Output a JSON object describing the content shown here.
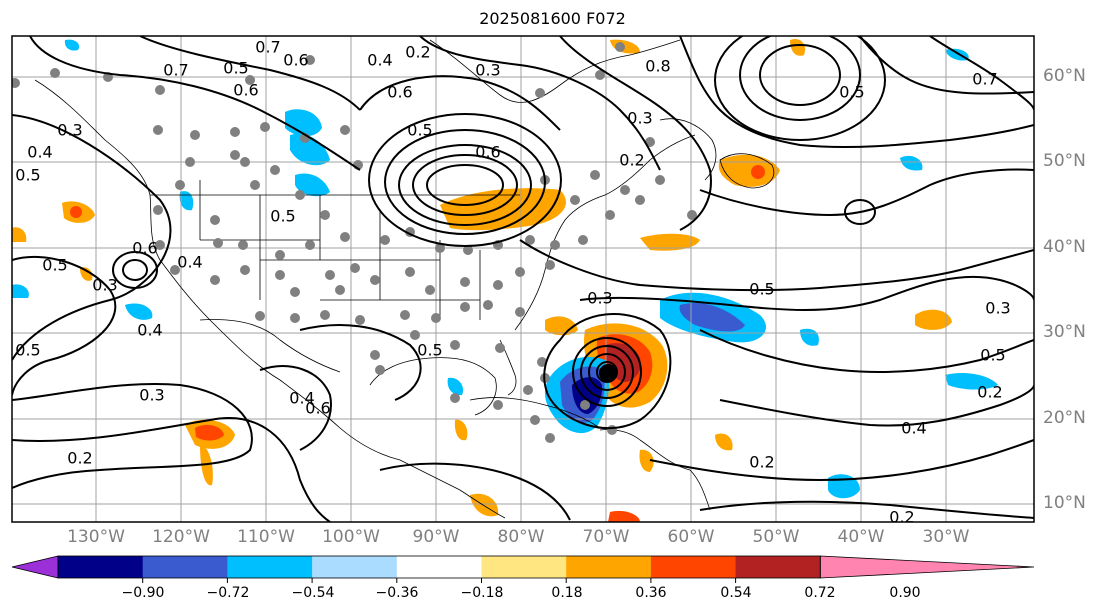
{
  "title": "2025081600 F072",
  "lat_labels": [
    "60°N",
    "50°N",
    "40°N",
    "30°N",
    "20°N",
    "10°N"
  ],
  "lon_labels": [
    "130°W",
    "120°W",
    "110°W",
    "100°W",
    "90°W",
    "80°W",
    "70°W",
    "60°W",
    "50°W",
    "40°W",
    "30°W"
  ],
  "colorbar": {
    "ticks": [
      "−0.90",
      "−0.72",
      "−0.54",
      "−0.36",
      "−0.18",
      "0.18",
      "0.36",
      "0.54",
      "0.72",
      "0.90"
    ],
    "colors": [
      "#9b30d8",
      "#000088",
      "#3a5bd0",
      "#00bfff",
      "#aadcff",
      "#ffffff",
      "#ffe680",
      "#ffa500",
      "#ff4500",
      "#b22222",
      "#ff85b0"
    ]
  },
  "contour_labels": [
    "0.7",
    "0.6",
    "0.5",
    "0.2",
    "0.3",
    "0.4",
    "0.6",
    "0.8",
    "0.7",
    "0.5",
    "0.3",
    "0.5",
    "0.6",
    "0.7",
    "0.3",
    "0.4",
    "0.5",
    "0.6",
    "0.5",
    "0.6",
    "0.5",
    "0.3",
    "0.4",
    "0.5",
    "0.5",
    "0.3",
    "0.5",
    "0.3",
    "0.2",
    "0.4",
    "0.3",
    "0.5",
    "0.6",
    "0.4",
    "0.2",
    "0.2",
    "0.4",
    "0.2",
    "0.2"
  ],
  "shade_colors": {
    "blue": "#00bfff",
    "lightblue": "#aadcff",
    "darkblue": "#3a5bd0",
    "navy": "#000088",
    "orange": "#ffa500",
    "red": "#ff4500",
    "darkred": "#b22222",
    "yellow": "#ffe680"
  }
}
